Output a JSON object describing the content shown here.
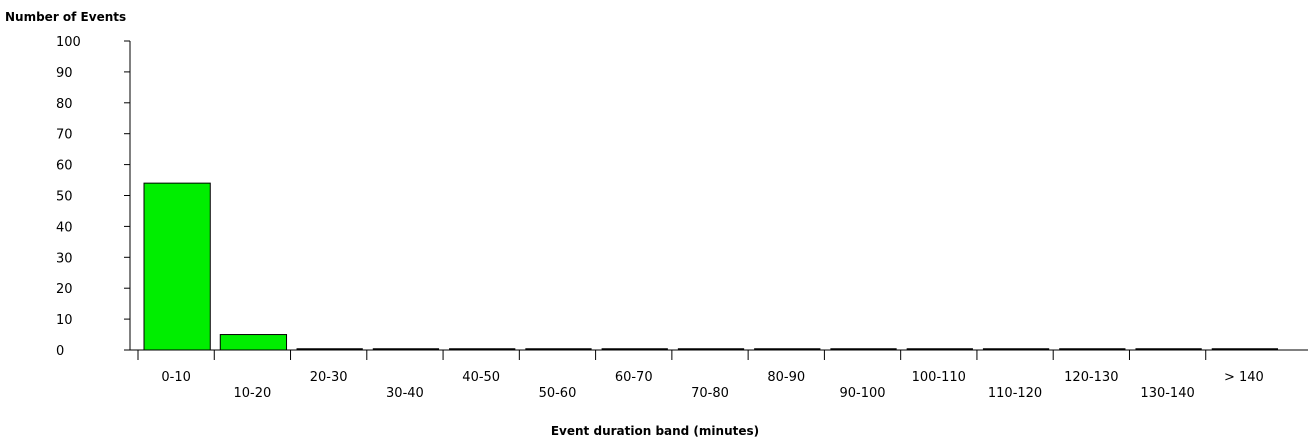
{
  "chart_data": {
    "type": "bar",
    "title": "",
    "ylabel": "Number of Events",
    "xlabel": "Event duration band (minutes)",
    "ylim": [
      0,
      100
    ],
    "yticks": [
      0,
      10,
      20,
      30,
      40,
      50,
      60,
      70,
      80,
      90,
      100
    ],
    "categories": [
      "0-10",
      "10-20",
      "20-30",
      "30-40",
      "40-50",
      "50-60",
      "60-70",
      "70-80",
      "80-90",
      "90-100",
      "100-110",
      "110-120",
      "120-130",
      "130-140",
      "> 140"
    ],
    "values": [
      54,
      5,
      0,
      0,
      0,
      0,
      0,
      0,
      0,
      0,
      0,
      0,
      0,
      0,
      0
    ],
    "bar_color": "#00ee00",
    "grid": false,
    "legend": "none"
  }
}
